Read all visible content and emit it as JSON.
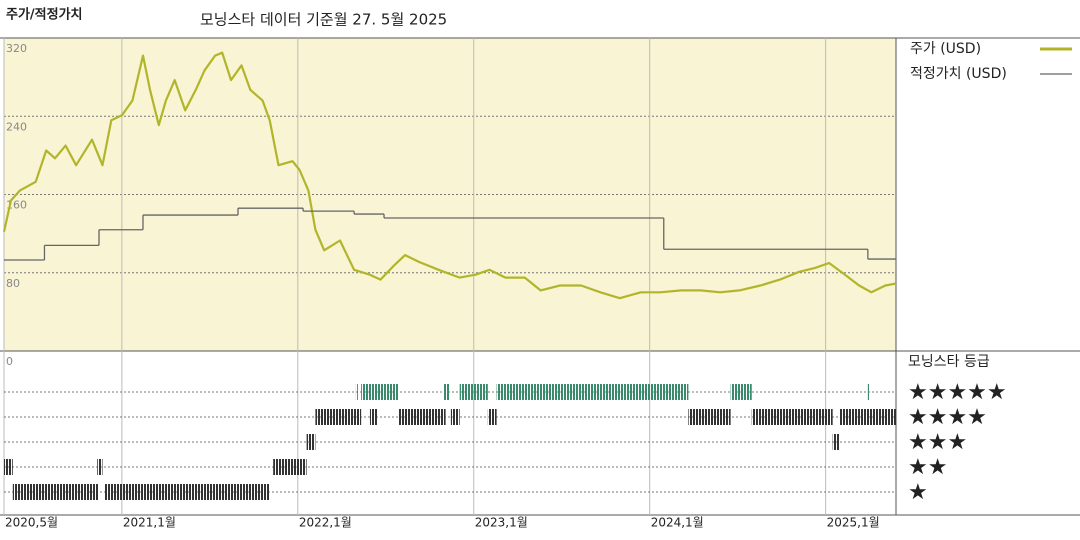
{
  "chart_data": {
    "type": "line",
    "title": "주가/적정가치",
    "subtitle": "모닝스타 데이터 기준월 27. 5월 2025",
    "xlim": [
      2020.33,
      2025.4
    ],
    "xticks": [
      {
        "value": 2020.33,
        "label": "2020,5월"
      },
      {
        "value": 2021,
        "label": "2021,1월"
      },
      {
        "value": 2022,
        "label": "2022,1월"
      },
      {
        "value": 2023,
        "label": "2023,1월"
      },
      {
        "value": 2024,
        "label": "2024,1월"
      },
      {
        "value": 2025,
        "label": "2025,1월"
      }
    ],
    "ylim": [
      0,
      320
    ],
    "yticks": [
      0,
      80,
      160,
      240,
      320
    ],
    "grid": true,
    "background": "#f8f4d4",
    "series": [
      {
        "name": "주가 (USD)",
        "color": "#b2b52a",
        "x": [
          2020.33,
          2020.37,
          2020.42,
          2020.51,
          2020.57,
          2020.62,
          2020.68,
          2020.74,
          2020.83,
          2020.89,
          2020.94,
          2021.0,
          2021.06,
          2021.12,
          2021.16,
          2021.21,
          2021.25,
          2021.3,
          2021.36,
          2021.42,
          2021.47,
          2021.53,
          2021.57,
          2021.62,
          2021.68,
          2021.73,
          2021.8,
          2021.84,
          2021.89,
          2021.97,
          2022.01,
          2022.06,
          2022.1,
          2022.15,
          2022.24,
          2022.32,
          2022.41,
          2022.47,
          2022.55,
          2022.61,
          2022.69,
          2022.8,
          2022.92,
          2023.01,
          2023.09,
          2023.18,
          2023.29,
          2023.38,
          2023.49,
          2023.61,
          2023.72,
          2023.83,
          2023.95,
          2024.06,
          2024.18,
          2024.29,
          2024.4,
          2024.51,
          2024.63,
          2024.74,
          2024.85,
          2024.94,
          2025.02,
          2025.11,
          2025.19,
          2025.26,
          2025.34,
          2025.4
        ],
        "values": [
          122,
          154,
          164,
          173,
          205,
          197,
          210,
          190,
          216,
          190,
          236,
          241,
          256,
          302,
          267,
          231,
          256,
          277,
          246,
          267,
          287,
          302,
          305,
          277,
          292,
          267,
          256,
          236,
          190,
          194,
          185,
          164,
          124,
          103,
          113,
          83,
          78,
          73,
          88,
          98,
          91,
          83,
          75,
          78,
          83,
          75,
          75,
          62,
          67,
          67,
          60,
          54,
          60,
          60,
          62,
          62,
          60,
          62,
          67,
          73,
          81,
          85,
          90,
          78,
          67,
          60,
          67,
          69
        ]
      },
      {
        "name": "적정가치 (USD)",
        "color": "#666666",
        "step": true,
        "x": [
          2020.33,
          2020.56,
          2020.87,
          2021.12,
          2021.66,
          2022.03,
          2022.32,
          2022.49,
          2024.08,
          2025.24
        ],
        "values": [
          93,
          108,
          124,
          139,
          146,
          143,
          140,
          136,
          104,
          94
        ]
      }
    ],
    "rating_title": "모닝스타 등급",
    "rating_ticks": [
      {
        "value": 5,
        "label": "★★★★★"
      },
      {
        "value": 4,
        "label": "★★★★"
      },
      {
        "value": 3,
        "label": "★★★"
      },
      {
        "value": 2,
        "label": "★★"
      },
      {
        "value": 1,
        "label": "★"
      }
    ],
    "rating_color": "#333333",
    "top_rating_color": "#3a8a6e",
    "ratings": {
      "start": [
        2020.38,
        2020.9,
        2020.33,
        2020.86,
        2021.86,
        2022.05,
        2025.04,
        2022.1,
        2022.41,
        2022.57,
        2022.87,
        2023.08,
        2024.22,
        2024.58,
        2025.08,
        2022.33,
        2022.36,
        2022.83,
        2022.92,
        2023.13,
        2024.46,
        2025.24
      ],
      "end": [
        2020.87,
        2021.84,
        2020.38,
        2020.89,
        2022.05,
        2022.1,
        2025.08,
        2022.36,
        2022.45,
        2022.84,
        2022.92,
        2023.13,
        2024.46,
        2025.04,
        2025.4,
        2022.34,
        2022.57,
        2022.86,
        2023.08,
        2024.22,
        2024.58,
        2025.25
      ],
      "stars": [
        1,
        1,
        2,
        2,
        2,
        3,
        3,
        4,
        4,
        4,
        4,
        4,
        4,
        4,
        4,
        5,
        5,
        5,
        5,
        5,
        5,
        5
      ]
    }
  }
}
